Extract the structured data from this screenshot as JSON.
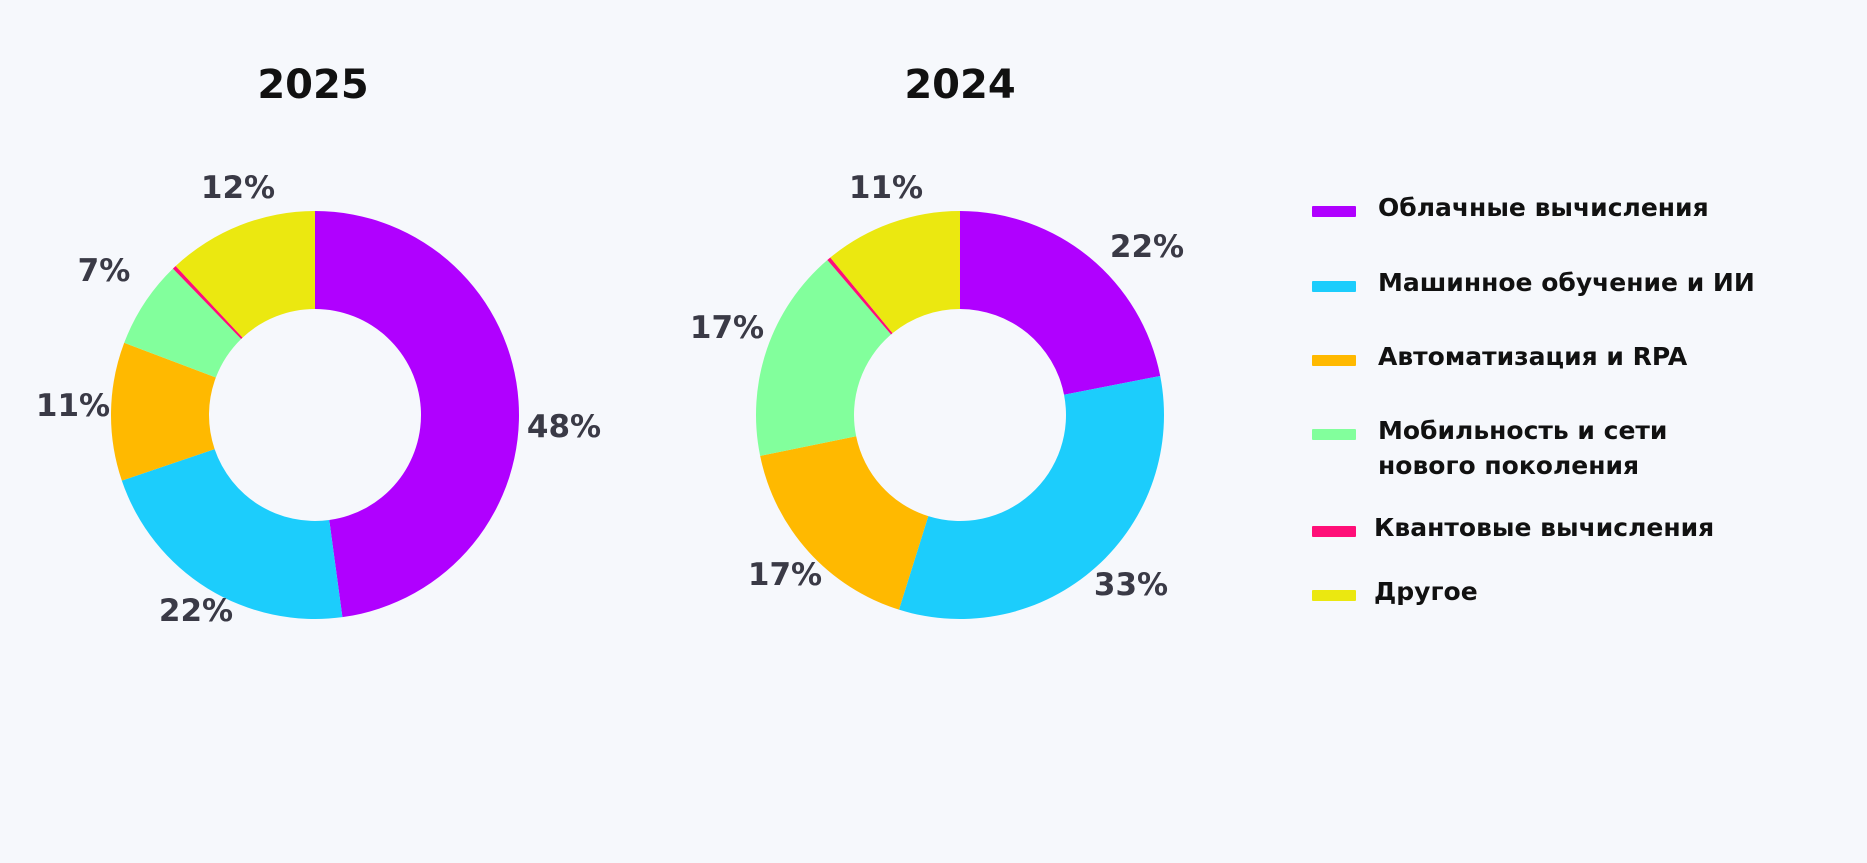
{
  "chart_data": [
    {
      "type": "pie",
      "title": "2025",
      "donut": true,
      "categories": [
        "Облачные вычисления",
        "Машинное обучение и ИИ",
        "Автоматизация и RPA",
        "Мобильность и сети нового поколения",
        "Квантовые вычисления",
        "Другое"
      ],
      "values": [
        48,
        22,
        11,
        7,
        0.3,
        12
      ],
      "labels": [
        "48%",
        "22%",
        "11%",
        "7%",
        "",
        "12%"
      ]
    },
    {
      "type": "pie",
      "title": "2024",
      "donut": true,
      "categories": [
        "Облачные вычисления",
        "Машинное обучение и ИИ",
        "Автоматизация и RPA",
        "Мобильность и сети нового поколения",
        "Квантовые вычисления",
        "Другое"
      ],
      "values": [
        22,
        33,
        17,
        17,
        0.3,
        11
      ],
      "labels": [
        "22%",
        "33%",
        "17%",
        "17%",
        "",
        "11%"
      ]
    }
  ],
  "legend": {
    "position": "right",
    "items": [
      {
        "label": "Облачные вычисления",
        "color": "#b000ff"
      },
      {
        "label": "Машинное обучение и ИИ",
        "color": "#1ccdfc"
      },
      {
        "label": "Автоматизация и RPA",
        "color": "#ffb900"
      },
      {
        "label": "Мобильность и сети\nнового поколения",
        "color": "#82ff9c"
      },
      {
        "label": "Квантовые вычисления",
        "color": "#ff0f78"
      },
      {
        "label": "Другое",
        "color": "#ebe810"
      }
    ]
  }
}
